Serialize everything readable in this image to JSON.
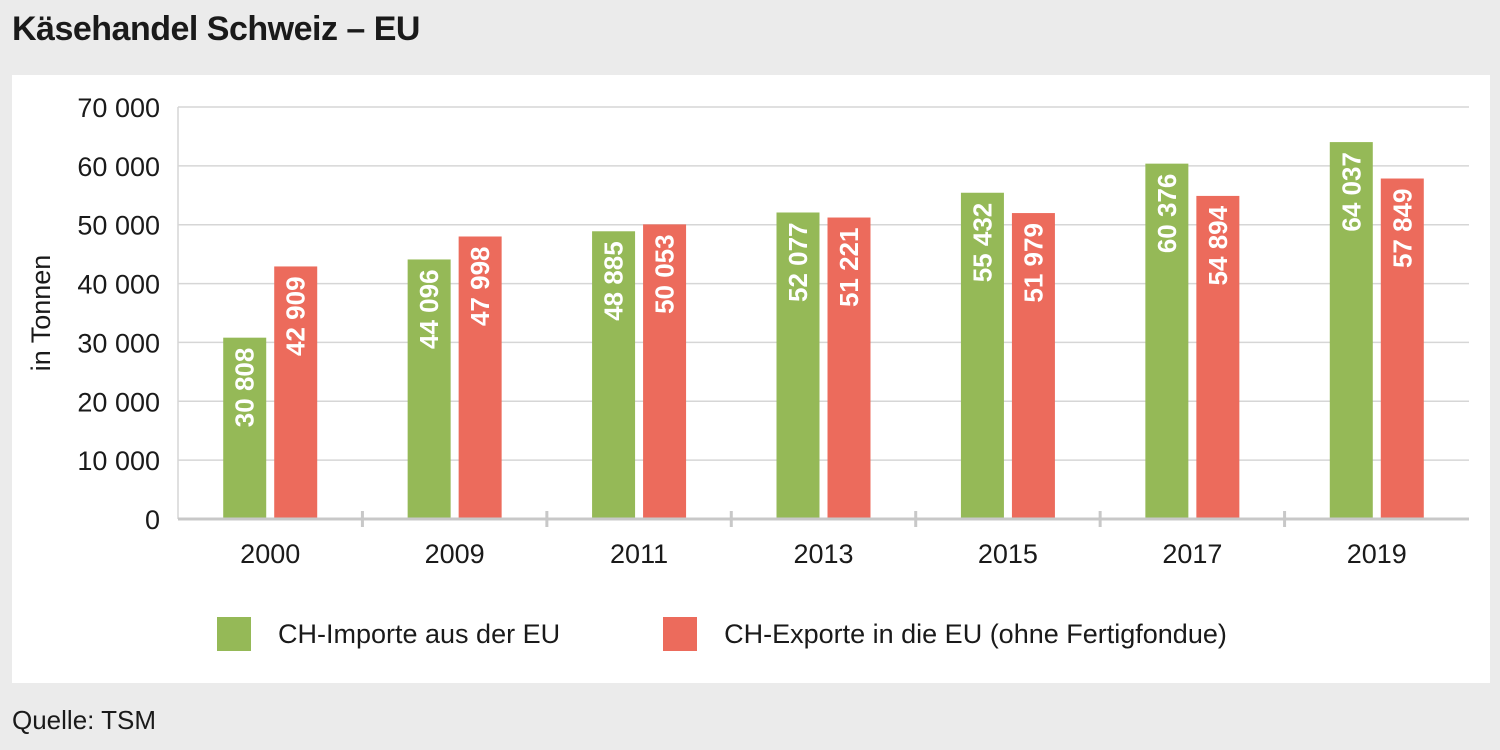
{
  "title": "Käsehandel Schweiz – EU",
  "source": "Quelle: TSM",
  "colors": {
    "imports": "#95b957",
    "exports": "#ec6b5c",
    "grid": "#d6d6d6",
    "axis": "#c8c8c8"
  },
  "chart_data": {
    "type": "bar",
    "title": "Käsehandel Schweiz – EU",
    "xlabel": "",
    "ylabel": "in Tonnen",
    "ylim": [
      0,
      70000
    ],
    "yticks": [
      0,
      10000,
      20000,
      30000,
      40000,
      50000,
      60000,
      70000
    ],
    "ytick_labels": [
      "0",
      "10 000",
      "20 000",
      "30 000",
      "40 000",
      "50 000",
      "60 000",
      "70 000"
    ],
    "grid": true,
    "legend_position": "bottom",
    "categories": [
      "2000",
      "2009",
      "2011",
      "2013",
      "2015",
      "2017",
      "2019"
    ],
    "series": [
      {
        "name": "CH-Importe aus der EU",
        "values": [
          30808,
          44096,
          48885,
          52077,
          55432,
          60376,
          64037
        ],
        "labels": [
          "30 808",
          "44 096",
          "48 885",
          "52 077",
          "55 432",
          "60 376",
          "64 037"
        ]
      },
      {
        "name": "CH-Exporte in die EU (ohne Fertigfondue)",
        "values": [
          42909,
          47998,
          50053,
          51221,
          51979,
          54894,
          57849
        ],
        "labels": [
          "42 909",
          "47 998",
          "50 053",
          "51 221",
          "51 979",
          "54 894",
          "57 849"
        ]
      }
    ]
  }
}
